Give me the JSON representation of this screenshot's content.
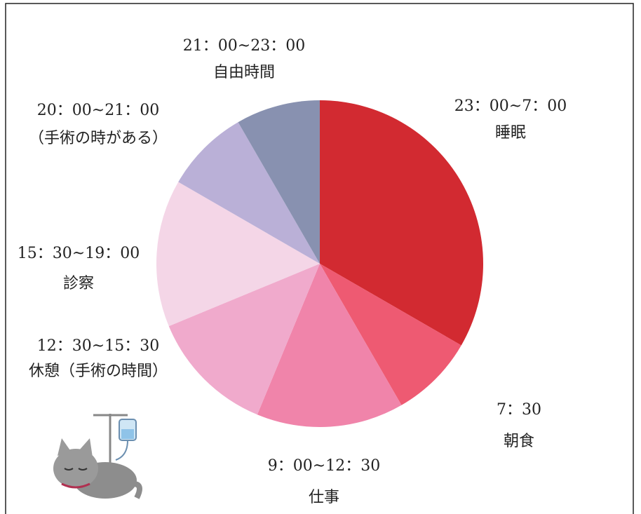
{
  "chart_data": {
    "type": "pie",
    "categories": [
      "睡眠",
      "朝食",
      "仕事",
      "休憩（手術の時間）",
      "診察",
      "（手術の時がある）",
      "自由時間"
    ],
    "time_labels": [
      "23：00~7：00",
      "7：30",
      "9：00~12：30",
      "12：30~15：30",
      "15：30~19：00",
      "20：00~21：00",
      "21：00~23：00"
    ],
    "values": [
      8,
      2,
      3.5,
      3,
      3.5,
      2,
      2
    ],
    "colors": [
      "#d22a31",
      "#ee5a72",
      "#f084aa",
      "#f0aacc",
      "#f4d6e7",
      "#bab0d7",
      "#8891b0"
    ]
  }
}
